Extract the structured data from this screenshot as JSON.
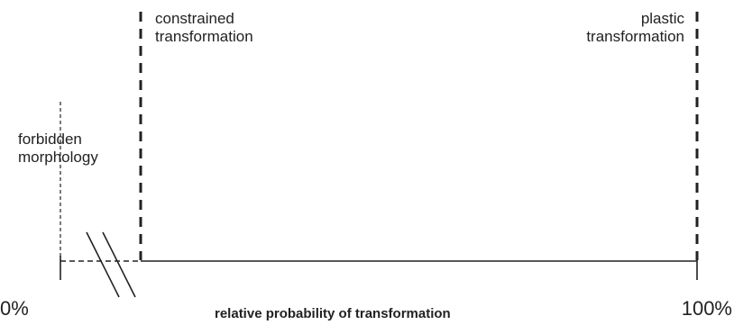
{
  "labels": {
    "constrained_line1": "constrained",
    "constrained_line2": "transformation",
    "plastic_line1": "plastic",
    "plastic_line2": "transformation",
    "forbidden_line1": "forbidden",
    "forbidden_line2": "morphology"
  },
  "axis": {
    "min_label": "0%",
    "max_label": "100%",
    "title": "relative probability of transformation"
  },
  "colors": {
    "ink": "#222222"
  }
}
